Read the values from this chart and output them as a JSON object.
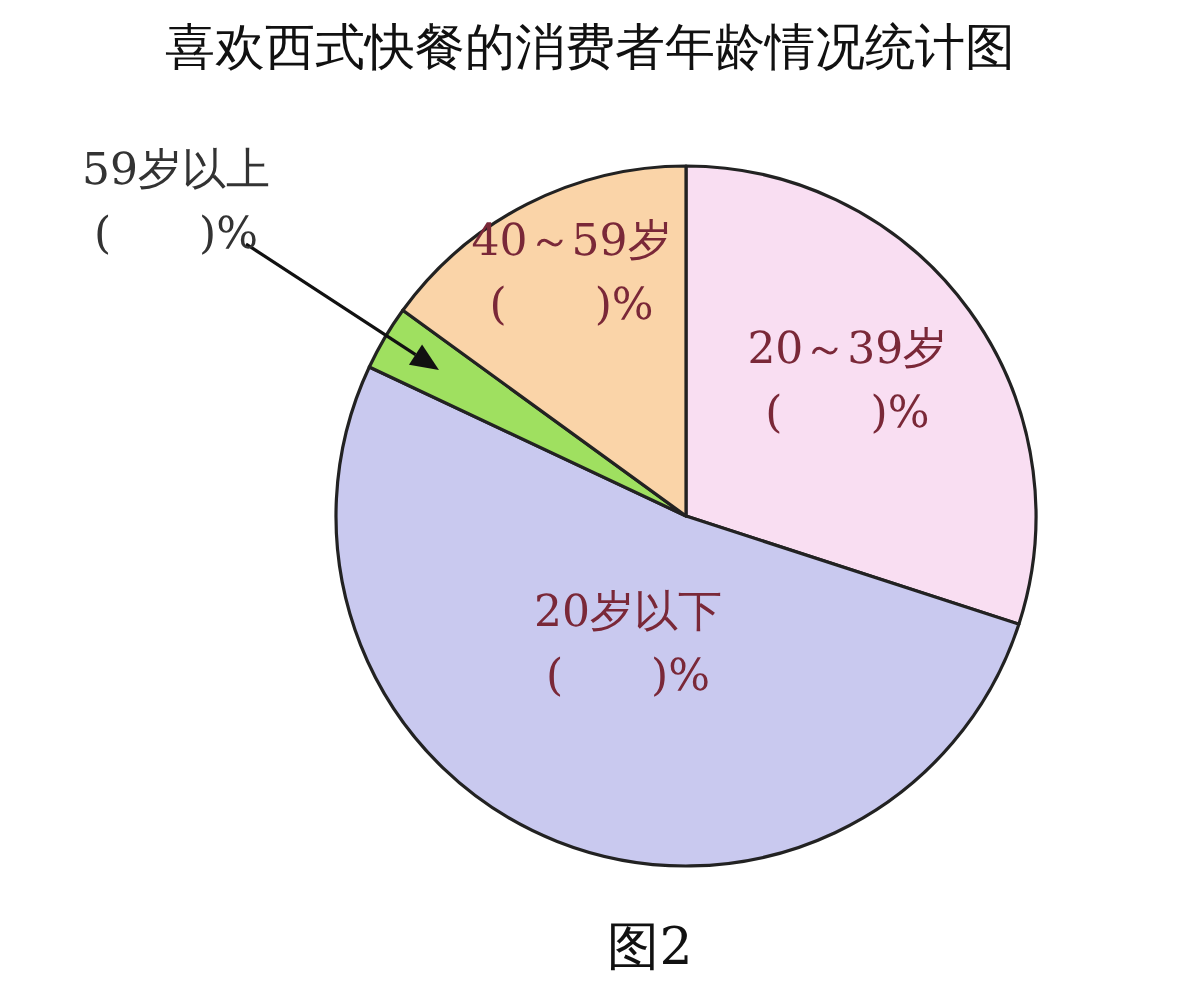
{
  "chart_data": {
    "type": "pie",
    "title": "喜欢西式快餐的消费者年龄情况统计图",
    "categories": [
      "20～39岁",
      "20岁以下",
      "59岁以上",
      "40～59岁"
    ],
    "values": [
      30,
      52,
      3,
      15
    ],
    "colors": [
      "#f9def2",
      "#c9c9ef",
      "#9fe060",
      "#fad4a8"
    ],
    "value_labels": [
      "(　　)%",
      "(　　)%",
      "(　　)%",
      "(　　)%"
    ],
    "annotations": [
      "图2"
    ]
  }
}
